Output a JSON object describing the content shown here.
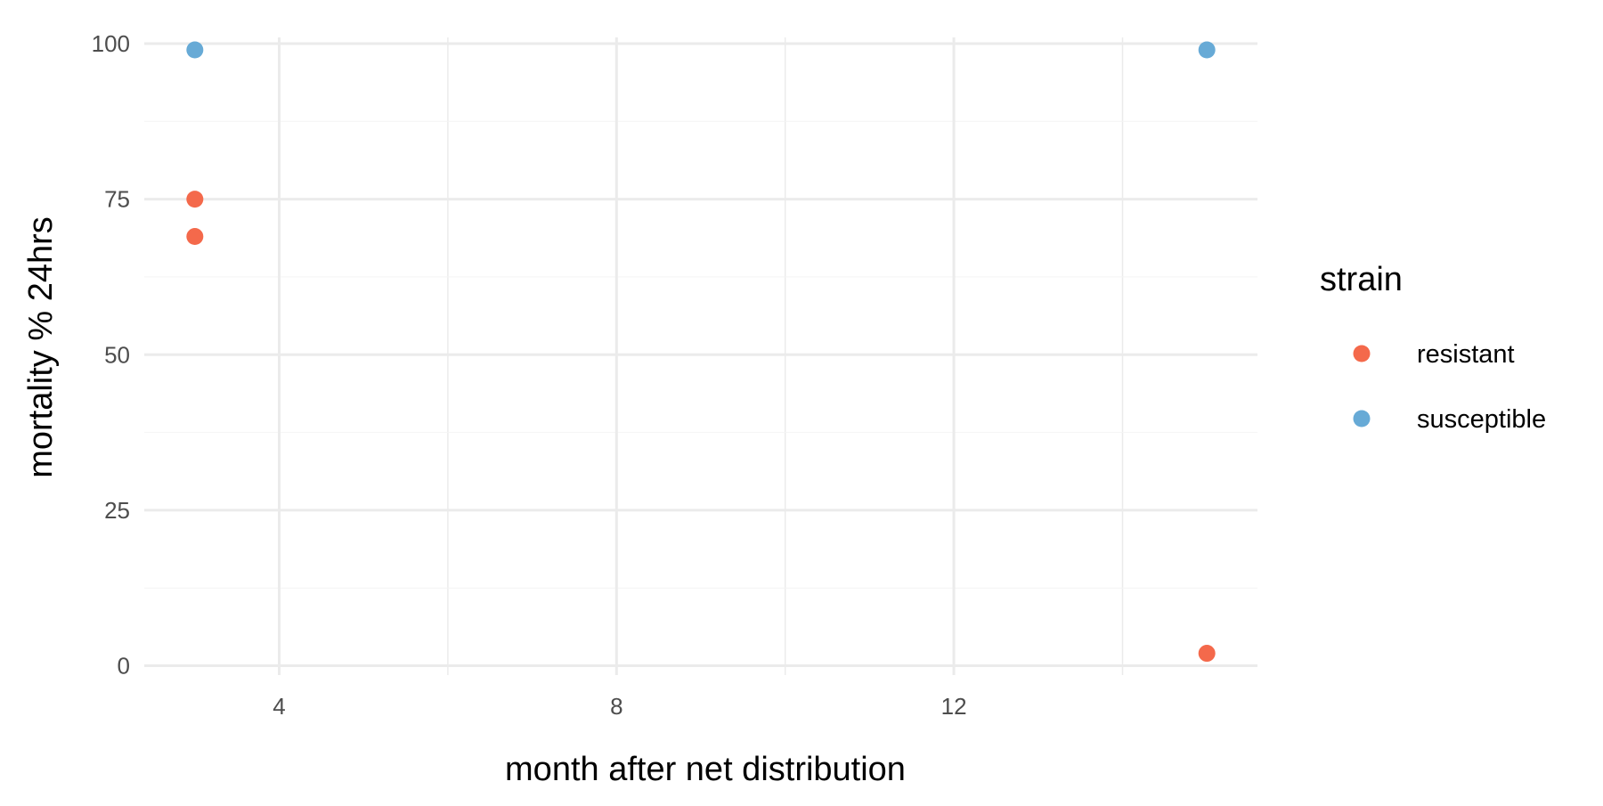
{
  "chart_data": {
    "type": "scatter",
    "xlabel": "month after net distribution",
    "ylabel": "mortality % 24hrs",
    "xlim": [
      2.4,
      15.6
    ],
    "ylim": [
      -1.5,
      101
    ],
    "x_ticks": [
      4,
      8,
      12
    ],
    "x_minor_ticks": [
      6,
      10,
      14
    ],
    "y_ticks": [
      0,
      25,
      50,
      75,
      100
    ],
    "grid": true,
    "legend": {
      "title": "strain",
      "position": "right"
    },
    "series": [
      {
        "name": "resistant",
        "color": "#F4694B",
        "points": [
          {
            "x": 3,
            "y": 75
          },
          {
            "x": 3,
            "y": 69
          },
          {
            "x": 15,
            "y": 2
          }
        ]
      },
      {
        "name": "susceptible",
        "color": "#67AAD6",
        "points": [
          {
            "x": 3,
            "y": 99
          },
          {
            "x": 15,
            "y": 99
          }
        ]
      }
    ]
  }
}
